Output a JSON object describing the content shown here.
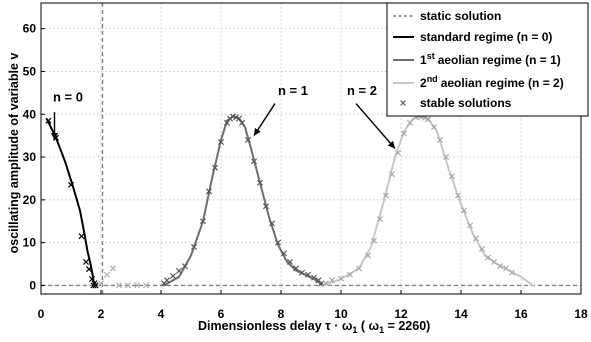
{
  "chart_data": {
    "type": "line",
    "xlabel": "Dimensionless delay τ · ω",
    "xlabel_sub": "1",
    "xlabel_paren_open": " ( ω",
    "xlabel_paren_sub": "1",
    "xlabel_paren_close": " = 2260)",
    "ylabel": "oscillating amplitude of variable v",
    "xlim": [
      0,
      18
    ],
    "ylim": [
      -2,
      66
    ],
    "x_ticks": [
      0,
      2,
      4,
      6,
      8,
      10,
      12,
      14,
      16,
      18
    ],
    "y_ticks": [
      0,
      10,
      20,
      30,
      40,
      50,
      60
    ],
    "grid": true,
    "legend_position": "top-right",
    "legend": [
      {
        "style": "dashed",
        "color": "#808080",
        "text": "static solution"
      },
      {
        "style": "solid",
        "color": "#000000",
        "text": "standard regime (n = 0)"
      },
      {
        "style": "solid",
        "color": "#6e6e6e",
        "text": "aeolian regime (n = 1)",
        "prefix": "1",
        "sup": "st"
      },
      {
        "style": "solid",
        "color": "#c8c8c8",
        "text": "aeolian regime (n = 2)",
        "prefix": "2",
        "sup": "nd"
      },
      {
        "style": "marker",
        "color": "#6e6e6e",
        "text": "stable solutions"
      }
    ],
    "static_solution": {
      "y": 0,
      "vertical_x": 2.05,
      "color": "#808080"
    },
    "series": [
      {
        "key": "n0",
        "color": "#000000",
        "line": [
          [
            0.2,
            38.8
          ],
          [
            0.5,
            34.5
          ],
          [
            0.8,
            29
          ],
          [
            1.05,
            23.5
          ],
          [
            1.3,
            17.5
          ],
          [
            1.45,
            12
          ],
          [
            1.55,
            8
          ],
          [
            1.65,
            5
          ],
          [
            1.72,
            2.5
          ],
          [
            1.76,
            0.5
          ],
          [
            1.8,
            0
          ]
        ],
        "markers": [
          [
            0.25,
            38.5
          ],
          [
            0.5,
            34.5
          ],
          [
            1.0,
            23.5
          ],
          [
            1.35,
            11.5
          ],
          [
            1.5,
            5.5
          ],
          [
            1.6,
            3.8
          ],
          [
            1.7,
            1.5
          ],
          [
            1.75,
            0
          ],
          [
            1.78,
            0.5
          ],
          [
            1.82,
            0
          ]
        ]
      },
      {
        "key": "n1",
        "color": "#6e6e6e",
        "line": [
          [
            4.1,
            0
          ],
          [
            4.6,
            2
          ],
          [
            5.0,
            7
          ],
          [
            5.4,
            15
          ],
          [
            5.7,
            25
          ],
          [
            6.0,
            34
          ],
          [
            6.2,
            38.5
          ],
          [
            6.4,
            39.5
          ],
          [
            6.6,
            39
          ],
          [
            6.8,
            37
          ],
          [
            7.0,
            32
          ],
          [
            7.3,
            24
          ],
          [
            7.6,
            16
          ],
          [
            7.9,
            9.5
          ],
          [
            8.2,
            5.5
          ],
          [
            8.5,
            3.5
          ],
          [
            8.8,
            2.5
          ],
          [
            9.1,
            1.5
          ],
          [
            9.3,
            0.5
          ],
          [
            9.4,
            0
          ]
        ],
        "markers": [
          [
            4.1,
            0.5
          ],
          [
            4.2,
            1.2
          ],
          [
            4.4,
            2.2
          ],
          [
            4.6,
            3.4
          ],
          [
            4.8,
            4.5
          ],
          [
            5.1,
            9
          ],
          [
            5.4,
            15
          ],
          [
            5.6,
            22
          ],
          [
            5.8,
            27.5
          ],
          [
            6.0,
            33.5
          ],
          [
            6.2,
            38
          ],
          [
            6.3,
            39
          ],
          [
            6.4,
            39.5
          ],
          [
            6.5,
            39.3
          ],
          [
            6.6,
            39
          ],
          [
            6.7,
            38
          ],
          [
            6.9,
            34
          ],
          [
            7.1,
            29
          ],
          [
            7.3,
            24
          ],
          [
            7.5,
            18.5
          ],
          [
            7.7,
            14.5
          ],
          [
            7.9,
            10
          ],
          [
            8.1,
            7.5
          ],
          [
            8.3,
            5.5
          ],
          [
            8.5,
            4
          ],
          [
            8.7,
            3
          ],
          [
            8.9,
            2.5
          ],
          [
            9.1,
            1.8
          ],
          [
            9.25,
            1.2
          ],
          [
            9.35,
            0.5
          ]
        ]
      },
      {
        "key": "n2",
        "color": "#c8c8c8",
        "line": [
          [
            9.4,
            0
          ],
          [
            10.0,
            1.5
          ],
          [
            10.6,
            4
          ],
          [
            11.0,
            9
          ],
          [
            11.4,
            19
          ],
          [
            11.8,
            30
          ],
          [
            12.1,
            36
          ],
          [
            12.4,
            39
          ],
          [
            12.6,
            39.5
          ],
          [
            12.9,
            39
          ],
          [
            13.2,
            36
          ],
          [
            13.6,
            27
          ],
          [
            14.0,
            19
          ],
          [
            14.4,
            12
          ],
          [
            14.8,
            7
          ],
          [
            15.2,
            5
          ],
          [
            15.6,
            3.5
          ],
          [
            16.0,
            2
          ],
          [
            16.4,
            0
          ]
        ],
        "markers": [
          [
            9.5,
            0.5
          ],
          [
            9.7,
            1.2
          ],
          [
            10.0,
            1.6
          ],
          [
            10.3,
            2.5
          ],
          [
            10.6,
            4
          ],
          [
            10.9,
            7
          ],
          [
            11.1,
            10.5
          ],
          [
            11.3,
            15.5
          ],
          [
            11.5,
            21
          ],
          [
            11.7,
            26
          ],
          [
            11.9,
            31
          ],
          [
            12.1,
            35.5
          ],
          [
            12.3,
            38
          ],
          [
            12.5,
            39.3
          ],
          [
            12.6,
            39.5
          ],
          [
            12.7,
            39.5
          ],
          [
            12.8,
            39.2
          ],
          [
            12.9,
            38.8
          ],
          [
            13.1,
            37
          ],
          [
            13.3,
            34
          ],
          [
            13.5,
            30
          ],
          [
            13.7,
            25.5
          ],
          [
            13.9,
            21
          ],
          [
            14.1,
            17.5
          ],
          [
            14.3,
            14
          ],
          [
            14.5,
            11
          ],
          [
            14.7,
            8.5
          ],
          [
            14.9,
            6.5
          ],
          [
            15.1,
            5.5
          ],
          [
            15.3,
            4.5
          ],
          [
            15.5,
            4
          ],
          [
            15.7,
            3
          ]
        ]
      },
      {
        "key": "extra-stable",
        "color": "#b0b0b0",
        "line": [],
        "markers": [
          [
            2.0,
            0.5
          ],
          [
            2.2,
            2.5
          ],
          [
            2.4,
            4
          ],
          [
            2.6,
            0
          ],
          [
            2.9,
            0
          ],
          [
            3.2,
            0
          ],
          [
            3.5,
            0
          ]
        ]
      }
    ],
    "annotations": [
      {
        "text": "n = 0",
        "label_x": 0.4,
        "label_y": 43,
        "arrow_from": [
          0.45,
          40.5
        ],
        "arrow_to": [
          0.45,
          34
        ]
      },
      {
        "text": "n = 1",
        "label_x": 7.9,
        "label_y": 44.5,
        "arrow_from": [
          7.8,
          42.5
        ],
        "arrow_to": [
          7.1,
          35
        ]
      },
      {
        "text": "n = 2",
        "label_x": 10.2,
        "label_y": 44.5,
        "arrow_from": [
          10.5,
          42.5
        ],
        "arrow_to": [
          11.8,
          32
        ]
      }
    ]
  }
}
